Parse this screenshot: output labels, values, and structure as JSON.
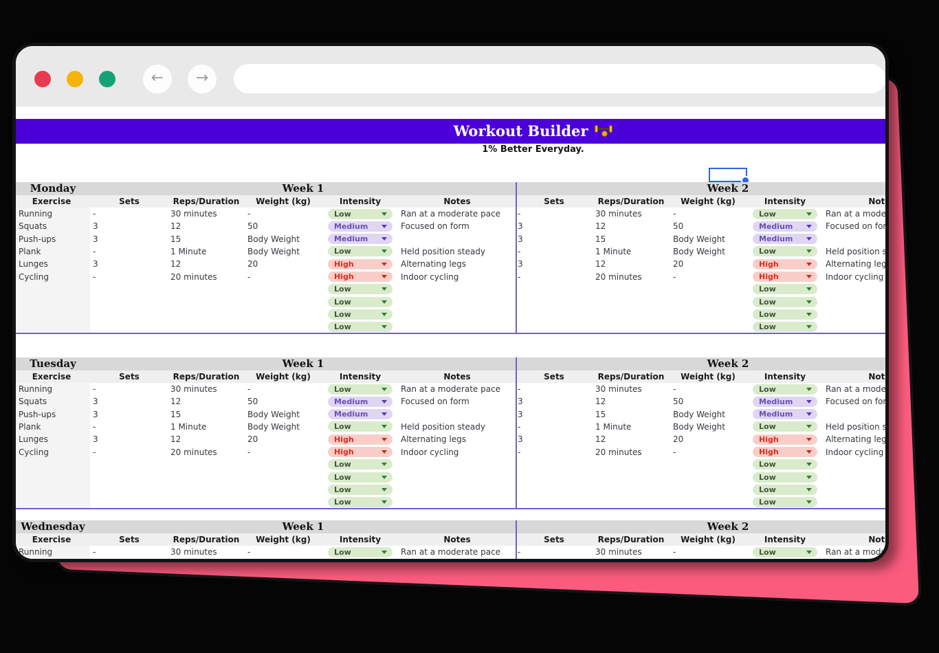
{
  "icons": {
    "back_arrow": "←",
    "forward_arrow": "→"
  },
  "header": {
    "title": "Workout Builder",
    "tagline": "1% Better Everyday."
  },
  "table": {
    "week1_label": "Week 1",
    "week2_label": "Week 2",
    "columns": [
      "Exercise",
      "Sets",
      "Reps/Duration",
      "Weight (kg)",
      "Intensity",
      "Notes"
    ],
    "days": [
      "Monday",
      "Tuesday",
      "Wednesday"
    ],
    "exercises": [
      {
        "name": "Running",
        "sets": "-",
        "reps": "30 minutes",
        "weight": "-",
        "intensity": "Low",
        "notes": "Ran at a moderate pace"
      },
      {
        "name": "Squats",
        "sets": "3",
        "reps": "12",
        "weight": "50",
        "intensity": "Medium",
        "notes": "Focused on form"
      },
      {
        "name": "Push-ups",
        "sets": "3",
        "reps": "15",
        "weight": "Body Weight",
        "intensity": "Medium",
        "notes": ""
      },
      {
        "name": "Plank",
        "sets": "-",
        "reps": "1 Minute",
        "weight": "Body Weight",
        "intensity": "Low",
        "notes": "Held position steady"
      },
      {
        "name": "Lunges",
        "sets": "3",
        "reps": "12",
        "weight": "20",
        "intensity": "High",
        "notes": "Alternating legs"
      },
      {
        "name": "Cycling",
        "sets": "-",
        "reps": "20 minutes",
        "weight": "-",
        "intensity": "High",
        "notes": "Indoor cycling"
      }
    ],
    "empty_rows_per_day": 4,
    "empty_row_intensity": "Low"
  },
  "colors": {
    "background": "#050505",
    "backdrop_pink": "#FB5C7E",
    "chrome_bg": "#E9E9E9",
    "traffic_red": "#E63B51",
    "traffic_yellow": "#F5B40B",
    "traffic_green": "#15A276",
    "nav_arrow": "#9B9B9B",
    "banner_purple": "#4C00D9",
    "divider_purple": "#6E61C4",
    "day_header_bg": "#D8D8D8",
    "column_header_bg": "#EFEFEF",
    "exercise_col_bg": "#F4F4F4",
    "selection_blue": "#2A63E9",
    "intensity": {
      "Low": {
        "bg": "#D9EBCB",
        "text": "#44543F",
        "arrow": "#2E7D32"
      },
      "Medium": {
        "bg": "#DFD6F2",
        "text": "#6B4FB5",
        "arrow": "#5B35B1"
      },
      "High": {
        "bg": "#F9CEC9",
        "text": "#DE2B1C",
        "arrow": "#C32A1C"
      }
    }
  }
}
